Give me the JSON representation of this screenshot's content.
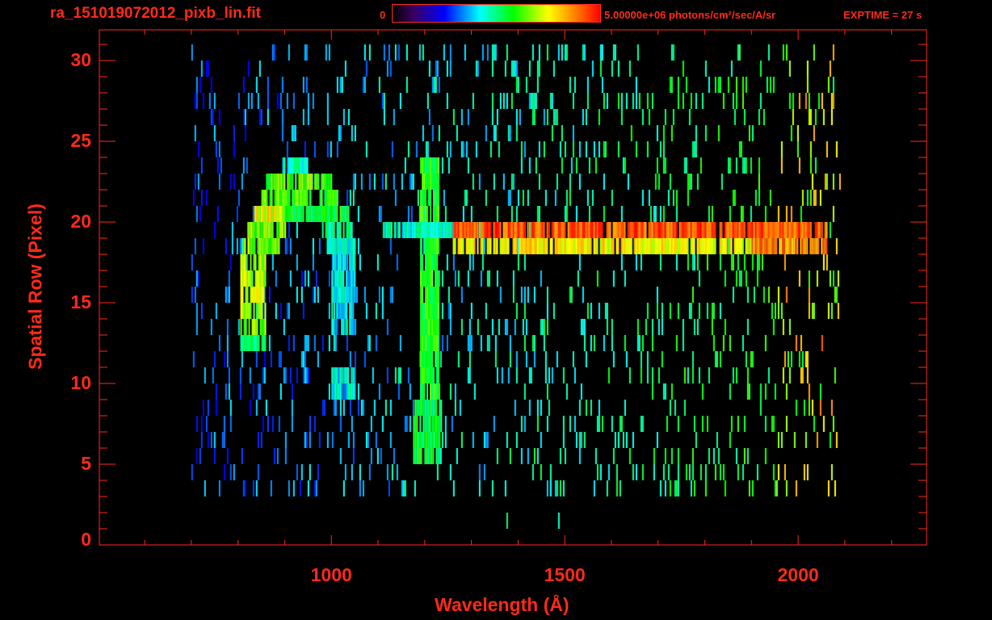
{
  "header": {
    "title": "ra_151019072012_pixb_lin.fit",
    "colorbar_min": "0",
    "colorbar_max": "5.00000e+06 photons/cm²/sec/A/sr",
    "exptime": "EXPTIME = 27 s"
  },
  "chart_data": {
    "type": "heatmap",
    "title": "ra_151019072012_pixb_lin.fit",
    "xlabel": "Wavelength (Å)",
    "ylabel": "Spatial Row (Pixel)",
    "xlim": [
      503,
      2275
    ],
    "ylim": [
      0,
      31.9
    ],
    "x_ticks": [
      "1000",
      "1500",
      "2000"
    ],
    "x_tick_values": [
      1000,
      1500,
      2000
    ],
    "y_ticks": [
      "0",
      "5",
      "10",
      "15",
      "20",
      "25",
      "30"
    ],
    "y_tick_values": [
      0,
      5,
      10,
      15,
      20,
      25,
      30
    ],
    "colorbar": {
      "min": 0,
      "max": 5000000,
      "units": "photons/cm²/sec/A/sr",
      "colormap": "rainbow"
    },
    "colors": {
      "axis": "#ff2a1a",
      "background": "#000000"
    },
    "noise": {
      "rows": [
        1,
        30
      ],
      "wavelength_range": [
        700,
        2090
      ],
      "occupancy": 0.12,
      "seed": 151019
    },
    "features": [
      {
        "name": "arc-top",
        "row": 23,
        "w": [
          895,
          950
        ],
        "level": 0.45
      },
      {
        "name": "arc",
        "row": 22,
        "w": [
          860,
          1000
        ],
        "level": 0.62
      },
      {
        "name": "arc",
        "row": 21,
        "w": [
          850,
          1010
        ],
        "level": 0.62
      },
      {
        "name": "arc",
        "row": 20,
        "w": [
          835,
          900
        ],
        "level": 0.74
      },
      {
        "name": "arc",
        "row": 20,
        "w": [
          900,
          1040
        ],
        "level": 0.55
      },
      {
        "name": "arc-left",
        "row": 19,
        "w": [
          820,
          900
        ],
        "level": 0.66
      },
      {
        "name": "arc-right",
        "row": 19,
        "w": [
          980,
          1050
        ],
        "level": 0.5
      },
      {
        "name": "arc-left",
        "row": 18,
        "w": [
          810,
          895
        ],
        "level": 0.66
      },
      {
        "name": "arc-right",
        "row": 18,
        "w": [
          990,
          1050
        ],
        "level": 0.45
      },
      {
        "name": "arc-left",
        "row": 17,
        "w": [
          805,
          860
        ],
        "level": 0.7
      },
      {
        "name": "arc-left",
        "row": 16,
        "w": [
          805,
          860
        ],
        "level": 0.7
      },
      {
        "name": "arc-left",
        "row": 15,
        "w": [
          805,
          860
        ],
        "level": 0.72
      },
      {
        "name": "arc-left",
        "row": 14,
        "w": [
          805,
          860
        ],
        "level": 0.7
      },
      {
        "name": "arc-left",
        "row": 13,
        "w": [
          805,
          860
        ],
        "level": 0.66
      },
      {
        "name": "arc-left",
        "row": 12,
        "w": [
          805,
          860
        ],
        "level": 0.5
      },
      {
        "name": "arc-right",
        "row": 17,
        "w": [
          1000,
          1050
        ],
        "level": 0.42
      },
      {
        "name": "arc-right",
        "row": 16,
        "w": [
          1000,
          1050
        ],
        "level": 0.42
      },
      {
        "name": "arc-right",
        "row": 15,
        "w": [
          1000,
          1050
        ],
        "level": 0.42
      },
      {
        "name": "arc-right",
        "row": 14,
        "w": [
          1000,
          1050
        ],
        "level": 0.42
      },
      {
        "name": "arc-right",
        "row": 13,
        "w": [
          1000,
          1050
        ],
        "level": 0.42
      },
      {
        "name": "arc-right",
        "row": 10,
        "w": [
          1000,
          1050
        ],
        "level": 0.42
      },
      {
        "name": "arc-right",
        "row": 9,
        "w": [
          1000,
          1050
        ],
        "level": 0.42
      },
      {
        "name": "lyman-alpha",
        "row_range": [
          9,
          23
        ],
        "w": [
          1190,
          1230
        ],
        "level": 0.58
      },
      {
        "name": "lyman-alpha",
        "row_range": [
          5,
          8
        ],
        "w": [
          1175,
          1235
        ],
        "level": 0.55
      },
      {
        "name": "spectrum-band",
        "row": 19,
        "w": [
          1110,
          1260
        ],
        "level": 0.46
      },
      {
        "name": "spectrum-band",
        "row": 19,
        "w": [
          1260,
          2060
        ],
        "level": 0.92
      },
      {
        "name": "spectrum-band",
        "row": 18,
        "w": [
          1260,
          1900
        ],
        "level": 0.76
      },
      {
        "name": "spectrum-band",
        "row": 18,
        "w": [
          1900,
          2060
        ],
        "level": 0.86
      }
    ]
  }
}
